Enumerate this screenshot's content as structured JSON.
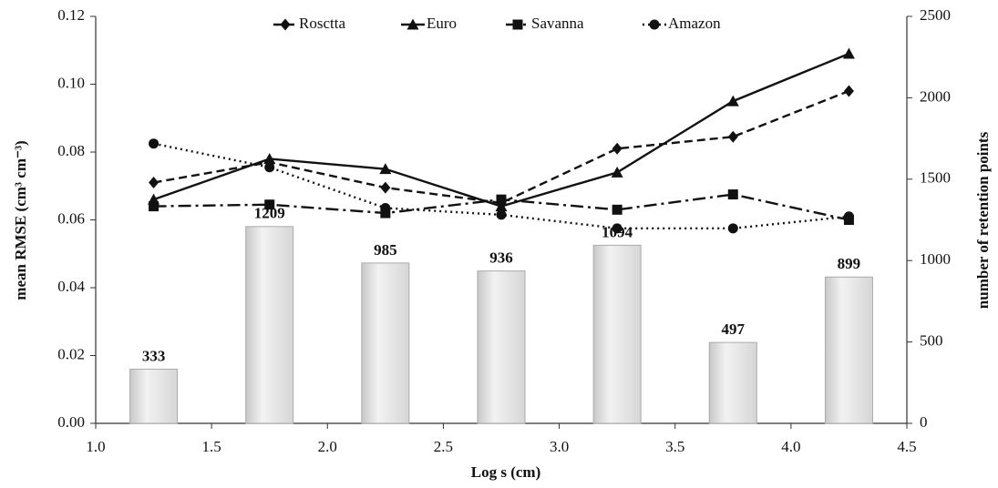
{
  "chart_data": {
    "type": "combo",
    "xlabel": "Log s (cm)",
    "ylabel": "mean RMSE (cm³ cm⁻³)",
    "y2label": "number of retention points",
    "xlim": [
      1.0,
      4.5
    ],
    "xticks": [
      {
        "value": 1.0,
        "label": "1.0"
      },
      {
        "value": 1.5,
        "label": "1.5"
      },
      {
        "value": 2.0,
        "label": "2.0"
      },
      {
        "value": 2.5,
        "label": "2.5"
      },
      {
        "value": 3.0,
        "label": "3.0"
      },
      {
        "value": 3.5,
        "label": "3.5"
      },
      {
        "value": 4.0,
        "label": "4.0"
      },
      {
        "value": 4.5,
        "label": "4.5"
      }
    ],
    "ylim": [
      0,
      0.12
    ],
    "yticks": [
      {
        "value": 0,
        "label": "0.00"
      },
      {
        "value": 0.02,
        "label": "0.02"
      },
      {
        "value": 0.04,
        "label": "0.04"
      },
      {
        "value": 0.06,
        "label": "0.06"
      },
      {
        "value": 0.08,
        "label": "0.08"
      },
      {
        "value": 0.1,
        "label": "0.10"
      },
      {
        "value": 0.12,
        "label": "0.12"
      }
    ],
    "y2lim": [
      0,
      2500
    ],
    "y2ticks": [
      0,
      500,
      1000,
      1500,
      2000,
      2500
    ],
    "x": [
      1.25,
      1.75,
      2.25,
      2.75,
      3.25,
      3.75,
      4.25
    ],
    "bars": {
      "axis": "y2",
      "color": "#e4e4e4",
      "values": [
        333,
        1209,
        985,
        936,
        1094,
        497,
        899
      ]
    },
    "series": [
      {
        "name": "Rosctta",
        "color": "#111111",
        "dash": "9,5",
        "marker": "diamond",
        "values": [
          0.071,
          0.077,
          0.0695,
          0.065,
          0.081,
          0.0845,
          0.098
        ]
      },
      {
        "name": "Euro",
        "color": "#111111",
        "dash": "none",
        "marker": "triangle",
        "values": [
          0.066,
          0.078,
          0.075,
          0.064,
          0.074,
          0.095,
          0.109
        ]
      },
      {
        "name": "Savanna",
        "color": "#111111",
        "dash": "14,5,3,5",
        "marker": "square",
        "values": [
          0.064,
          0.0645,
          0.062,
          0.066,
          0.063,
          0.0675,
          0.06
        ]
      },
      {
        "name": "Amazon",
        "color": "#111111",
        "dash": "2,4",
        "marker": "circle",
        "values": [
          0.0825,
          0.0755,
          0.0635,
          0.0615,
          0.0575,
          0.0575,
          0.061
        ]
      }
    ]
  }
}
